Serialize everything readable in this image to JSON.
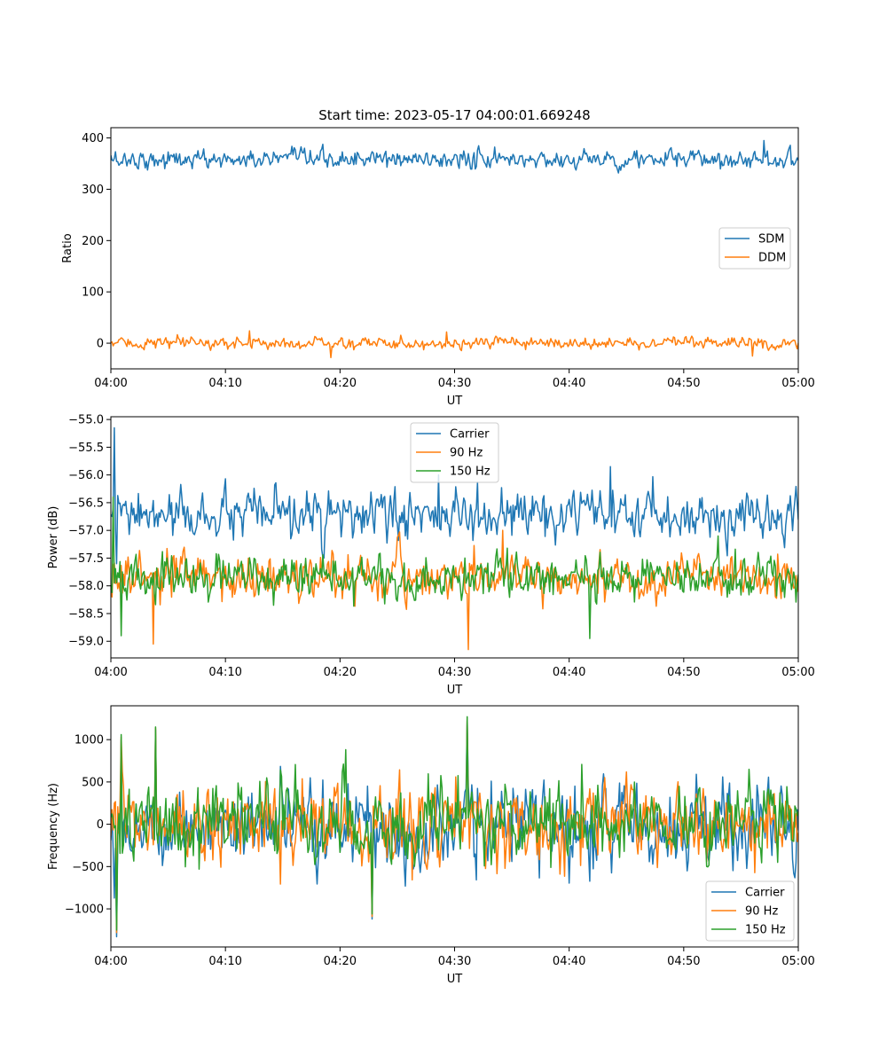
{
  "chart_data": [
    {
      "type": "line",
      "title": "Start time: 2023-05-17 04:00:01.669248",
      "xlabel": "UT",
      "ylabel": "Ratio",
      "x_tick_labels": [
        "04:00",
        "04:10",
        "04:20",
        "04:30",
        "04:40",
        "04:50",
        "05:00"
      ],
      "xlim": [
        "04:00",
        "05:00"
      ],
      "ylim": [
        -50,
        420
      ],
      "y_ticks": [
        0,
        100,
        200,
        300,
        400
      ],
      "legend": {
        "position": "center-right",
        "entries": [
          "SDM",
          "DDM"
        ]
      },
      "series": [
        {
          "name": "SDM",
          "color": "#1f77b4",
          "mean": 358,
          "noise": 13,
          "spikes": [
            [
              12.1,
              358
            ],
            [
              57.0,
              395
            ]
          ]
        },
        {
          "name": "DDM",
          "color": "#ff7f0e",
          "mean": 0,
          "noise": 8,
          "spikes": [
            [
              12.1,
              24
            ],
            [
              19.2,
              -28
            ],
            [
              29.3,
              22
            ],
            [
              56.0,
              -25
            ]
          ]
        }
      ]
    },
    {
      "type": "line",
      "title": "",
      "xlabel": "UT",
      "ylabel": "Power (dB)",
      "x_tick_labels": [
        "04:00",
        "04:10",
        "04:20",
        "04:30",
        "04:40",
        "04:50",
        "05:00"
      ],
      "xlim": [
        "04:00",
        "05:00"
      ],
      "ylim": [
        -59.3,
        -54.95
      ],
      "y_ticks": [
        -59.0,
        -58.5,
        -58.0,
        -57.5,
        -57.0,
        -56.5,
        -56.0,
        -55.5,
        -55.0
      ],
      "legend": {
        "position": "top-center",
        "entries": [
          "Carrier",
          "90 Hz",
          "150 Hz"
        ]
      },
      "series": [
        {
          "name": "Carrier",
          "color": "#1f77b4",
          "mean": -56.75,
          "noise": 0.3,
          "spikes": [
            [
              0.3,
              -55.15
            ],
            [
              0.5,
              -57.6
            ],
            [
              28.6,
              -56.0
            ],
            [
              43.6,
              -55.85
            ]
          ]
        },
        {
          "name": "90 Hz",
          "color": "#ff7f0e",
          "mean": -57.85,
          "noise": 0.28,
          "spikes": [
            [
              3.7,
              -59.05
            ],
            [
              31.2,
              -59.15
            ],
            [
              34.2,
              -57.0
            ]
          ]
        },
        {
          "name": "150 Hz",
          "color": "#2ca02c",
          "mean": -57.85,
          "noise": 0.28,
          "spikes": [
            [
              0.2,
              -56.4
            ],
            [
              0.9,
              -58.9
            ],
            [
              41.8,
              -58.95
            ],
            [
              53.0,
              -57.1
            ]
          ]
        }
      ]
    },
    {
      "type": "line",
      "title": "",
      "xlabel": "UT",
      "ylabel": "Frequency (Hz)",
      "x_tick_labels": [
        "04:00",
        "04:10",
        "04:20",
        "04:30",
        "04:40",
        "04:50",
        "05:00"
      ],
      "xlim": [
        "04:00",
        "05:00"
      ],
      "ylim": [
        -1450,
        1400
      ],
      "y_ticks": [
        -1000,
        -500,
        0,
        500,
        1000
      ],
      "legend": {
        "position": "bottom-right",
        "entries": [
          "Carrier",
          "90 Hz",
          "150 Hz"
        ]
      },
      "series": [
        {
          "name": "Carrier",
          "color": "#1f77b4",
          "mean": -30,
          "noise": 330,
          "spikes": [
            [
              0.5,
              -1330
            ],
            [
              0.9,
              1000
            ],
            [
              3.9,
              1120
            ],
            [
              31.1,
              1220
            ],
            [
              22.8,
              -1120
            ]
          ]
        },
        {
          "name": "90 Hz",
          "color": "#ff7f0e",
          "mean": 0,
          "noise": 330,
          "spikes": [
            [
              0.5,
              -1280
            ],
            [
              0.9,
              1030
            ],
            [
              3.9,
              1140
            ],
            [
              31.1,
              1250
            ],
            [
              22.8,
              -1090
            ]
          ]
        },
        {
          "name": "150 Hz",
          "color": "#2ca02c",
          "mean": 30,
          "noise": 330,
          "spikes": [
            [
              0.5,
              -1250
            ],
            [
              0.9,
              1060
            ],
            [
              3.9,
              1150
            ],
            [
              31.1,
              1270
            ],
            [
              22.8,
              -1060
            ]
          ]
        }
      ]
    }
  ]
}
